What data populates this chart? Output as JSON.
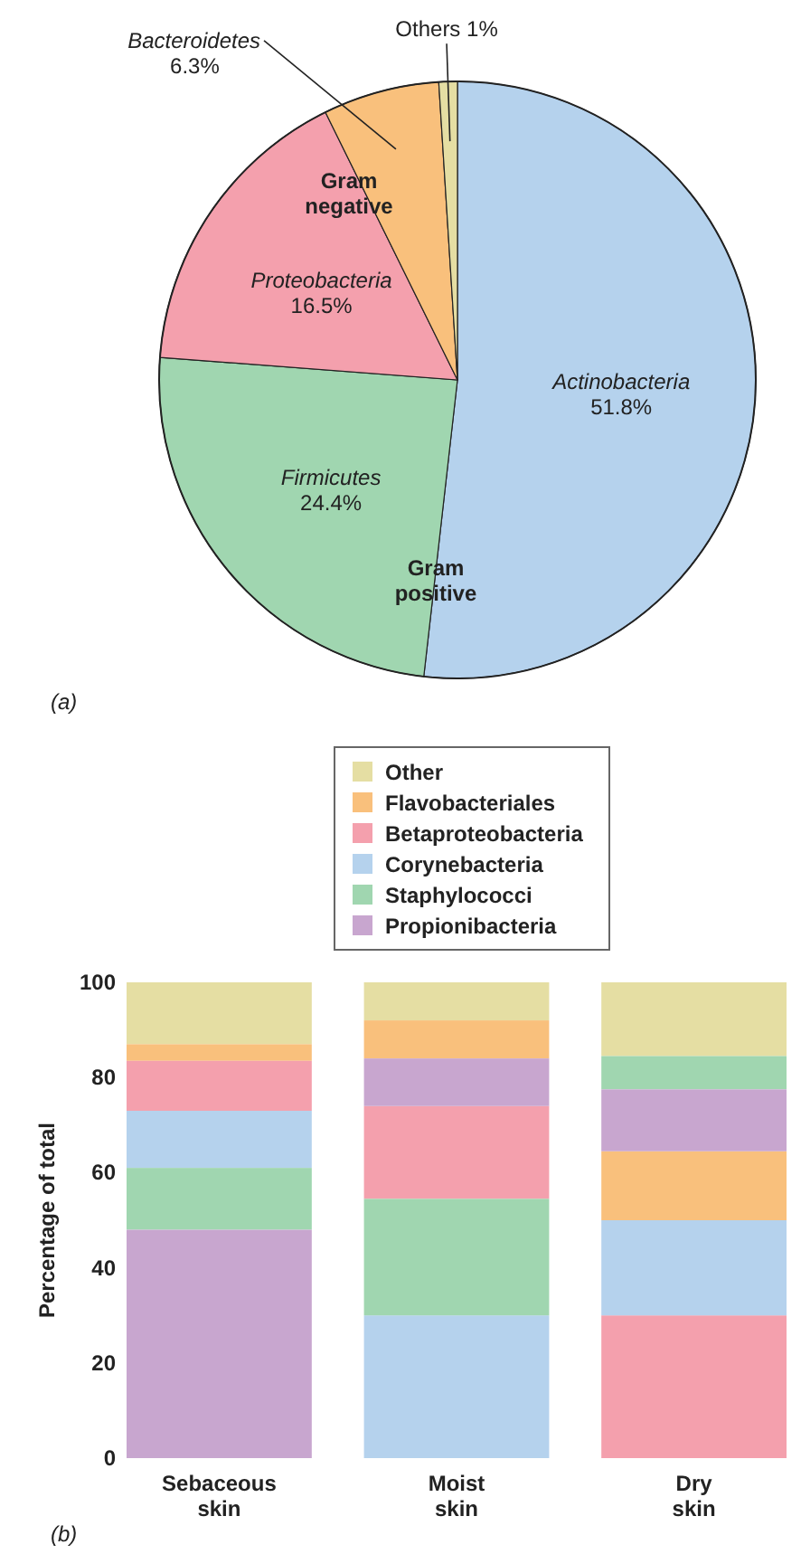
{
  "chart_data": [
    {
      "type": "pie",
      "categories": [
        "Actinobacteria",
        "Firmicutes",
        "Proteobacteria",
        "Bacteroidetes",
        "Others"
      ],
      "values": [
        51.8,
        24.4,
        16.5,
        6.3,
        1
      ],
      "colors": [
        "#b5d2ed",
        "#a0d6b0",
        "#f4a0ad",
        "#f9c07c",
        "#e5dea3"
      ],
      "value_labels": [
        "51.8%",
        "24.4%",
        "16.5%",
        "6.3%",
        "1%"
      ],
      "annotations": [
        "Gram negative",
        "Gram positive",
        "(a)"
      ]
    },
    {
      "type": "bar",
      "categories": [
        "Sebaceous skin",
        "Moist skin",
        "Dry skin"
      ],
      "ylabel": "Percentage of total",
      "ylim": [
        0,
        100
      ],
      "yticks": [
        0,
        20,
        40,
        60,
        80,
        100
      ],
      "legend": "top",
      "grid": false,
      "annotations": [
        "(b)"
      ],
      "series": [
        {
          "name": "Other",
          "color": "#e5dea3",
          "values": [
            13,
            8,
            15.5
          ],
          "base": [
            87,
            92,
            84.5
          ]
        },
        {
          "name": "Flavobacteriales",
          "color": "#f9c07c",
          "values": [
            3.5,
            8,
            14.5
          ],
          "base": [
            83.5,
            84,
            50
          ]
        },
        {
          "name": "Betaproteobacteria",
          "color": "#f4a0ad",
          "values": [
            10.5,
            19.5,
            30
          ],
          "base": [
            73,
            54.5,
            0
          ]
        },
        {
          "name": "Corynebacteria",
          "color": "#b5d2ed",
          "values": [
            12,
            30,
            20
          ],
          "base": [
            61,
            0,
            30
          ]
        },
        {
          "name": "Staphylococci",
          "color": "#a0d6b0",
          "values": [
            13,
            24.5,
            7
          ],
          "base": [
            48,
            30,
            77.5
          ]
        },
        {
          "name": "Propionibacteria",
          "color": "#c8a6cf",
          "values": [
            48,
            10,
            13
          ],
          "base": [
            0,
            74,
            64.5
          ]
        }
      ]
    }
  ]
}
